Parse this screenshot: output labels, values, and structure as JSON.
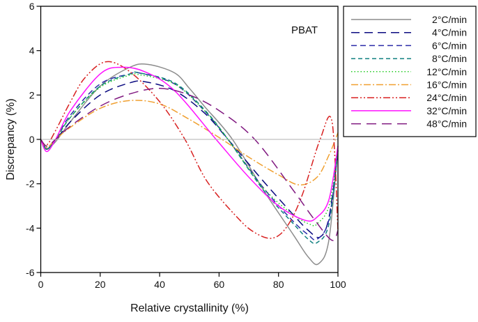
{
  "chart_data": {
    "type": "line",
    "annotation": "PBAT",
    "xlabel": "Relative crystallinity (%)",
    "ylabel": "Discrepancy (%)",
    "xlim": [
      0,
      100
    ],
    "ylim": [
      -6,
      6
    ],
    "xticks": [
      0,
      20,
      40,
      60,
      80,
      100
    ],
    "yticks": [
      -6,
      -4,
      -2,
      0,
      2,
      4,
      6
    ],
    "zero_line": true,
    "grid": false,
    "legend_position": "outside-top-right",
    "series": [
      {
        "name": "2°C/min",
        "color": "#8c8c8c",
        "dash": "",
        "x": [
          0,
          2,
          5,
          10,
          20,
          30,
          36,
          45,
          50,
          55,
          64.5,
          75,
          85,
          90,
          93.5,
          97,
          100
        ],
        "y": [
          0,
          -0.4,
          -0.1,
          0.8,
          2.4,
          3.25,
          3.38,
          3.0,
          2.3,
          1.5,
          0,
          -2.3,
          -4.3,
          -5.3,
          -5.6,
          -4.5,
          -0.3
        ]
      },
      {
        "name": "4°C/min",
        "color": "#0a0a80",
        "dash": "12,7",
        "x": [
          0,
          2,
          5,
          10,
          20,
          30,
          35,
          45,
          55,
          63,
          75,
          85,
          90,
          94,
          97,
          100
        ],
        "y": [
          0,
          -0.4,
          -0.05,
          0.8,
          2.0,
          2.55,
          2.6,
          2.2,
          1.2,
          0,
          -1.9,
          -3.4,
          -4.1,
          -4.4,
          -3.5,
          -0.5
        ]
      },
      {
        "name": "6°C/min",
        "color": "#2a2aa8",
        "dash": "8,5",
        "x": [
          0,
          2,
          5,
          10,
          20,
          30,
          33,
          45,
          55,
          63,
          75,
          85,
          90,
          93,
          97,
          100
        ],
        "y": [
          0,
          -0.45,
          0,
          1.1,
          2.5,
          2.95,
          3.0,
          2.5,
          1.3,
          0,
          -2.2,
          -3.7,
          -4.3,
          -4.5,
          -3.6,
          -0.5
        ]
      },
      {
        "name": "8°C/min",
        "color": "#108080",
        "dash": "6,4",
        "x": [
          0,
          2,
          5,
          10,
          20,
          30,
          33,
          45,
          55,
          63,
          75,
          85,
          90,
          93,
          97,
          100
        ],
        "y": [
          0,
          -0.45,
          0,
          1.0,
          2.4,
          2.95,
          3.0,
          2.55,
          1.35,
          0,
          -2.3,
          -3.8,
          -4.5,
          -4.65,
          -3.8,
          -0.5
        ]
      },
      {
        "name": "12°C/min",
        "color": "#22cc22",
        "dash": "1.5,3",
        "x": [
          0,
          2,
          5,
          10,
          20,
          30,
          33,
          45,
          55,
          63,
          75,
          85,
          91,
          93,
          97,
          100
        ],
        "y": [
          0,
          -0.45,
          0,
          1.0,
          2.35,
          2.9,
          2.92,
          2.5,
          1.3,
          0,
          -2.2,
          -3.4,
          -3.85,
          -3.8,
          -3.0,
          -0.5
        ]
      },
      {
        "name": "16°C/min",
        "color": "#f0a030",
        "dash": "10,3,2,3",
        "x": [
          0,
          2,
          5,
          10,
          20,
          30,
          40,
          50,
          61,
          70,
          80,
          87,
          93,
          97,
          100
        ],
        "y": [
          0,
          -0.35,
          0,
          0.55,
          1.4,
          1.75,
          1.6,
          0.9,
          0,
          -0.8,
          -1.6,
          -2.05,
          -1.7,
          -0.7,
          0.3
        ]
      },
      {
        "name": "24°C/min",
        "color": "#d82020",
        "dash": "10,3,2,3,2,3",
        "x": [
          0,
          2,
          5,
          10,
          15,
          22,
          30,
          40,
          48.5,
          56,
          66,
          72,
          78,
          83,
          88,
          94,
          98,
          100
        ],
        "y": [
          0,
          -0.25,
          0.4,
          1.7,
          2.8,
          3.5,
          3.05,
          1.7,
          0,
          -1.9,
          -3.5,
          -4.2,
          -4.45,
          -3.9,
          -2.5,
          0,
          0.8,
          -4.1
        ]
      },
      {
        "name": "32°C/min",
        "color": "#ff10ff",
        "dash": "",
        "x": [
          0,
          2,
          5,
          10,
          20,
          27,
          35,
          45,
          59,
          70,
          80,
          89,
          93,
          97,
          100
        ],
        "y": [
          0,
          -0.55,
          0,
          1.3,
          2.95,
          3.25,
          3.05,
          2.2,
          0,
          -1.7,
          -3.0,
          -3.65,
          -3.5,
          -2.7,
          -0.3
        ]
      },
      {
        "name": "48°C/min",
        "color": "#801880",
        "dash": "14,8",
        "x": [
          0,
          2,
          5,
          10,
          20,
          30,
          40,
          50,
          60,
          72,
          85,
          92,
          98,
          100
        ],
        "y": [
          0,
          -0.3,
          0,
          0.6,
          1.5,
          2.05,
          2.3,
          2.0,
          1.3,
          0,
          -2.3,
          -3.6,
          -4.55,
          -4.1
        ]
      }
    ]
  }
}
